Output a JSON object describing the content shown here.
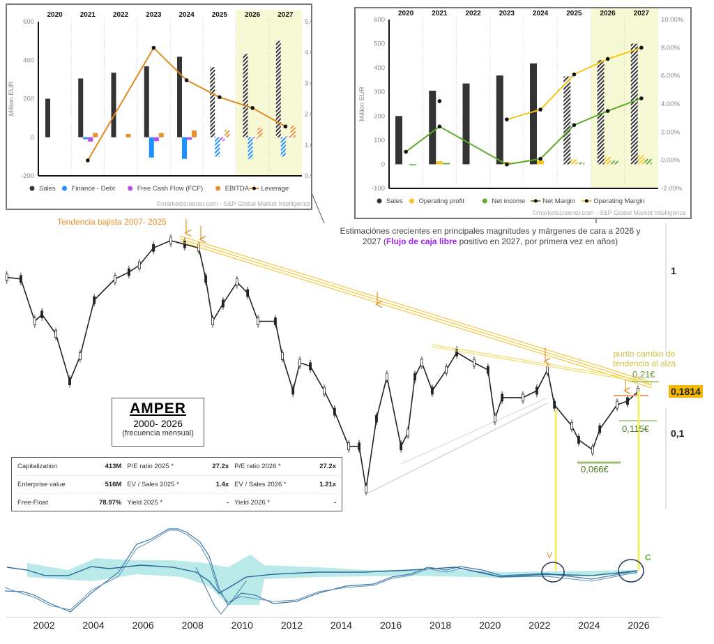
{
  "chart_data": [
    {
      "type": "bar",
      "title": "",
      "categories": [
        "2020",
        "2021",
        "2022",
        "2023",
        "2024",
        "2025",
        "2026",
        "2027"
      ],
      "estimate_categories": [
        "2025",
        "2026",
        "2027"
      ],
      "highlighted_categories": [
        "2026",
        "2027"
      ],
      "ylabel": "Million EUR",
      "ylim": [
        -200,
        600
      ],
      "yticks": [
        -200,
        0,
        200,
        400,
        600
      ],
      "ylabel_right": "Leverage (Debt/Ebitda)",
      "ylim_right": [
        0,
        5
      ],
      "yticks_right": [
        "0.00x",
        "1.00x",
        "2.00x",
        "3.00x",
        "4.00x",
        "5.00x"
      ],
      "series": [
        {
          "name": "Sales",
          "kind": "bar",
          "color": "#333333",
          "values": [
            200,
            305,
            335,
            368,
            418,
            364,
            432,
            500
          ]
        },
        {
          "name": "Finance - Debt",
          "kind": "bar",
          "color": "#1e90ff",
          "values": [
            null,
            -10,
            null,
            -105,
            -112,
            -100,
            -112,
            -100
          ]
        },
        {
          "name": "Free Cash Flow (FCF)",
          "kind": "bar",
          "color": "#b44cf0",
          "values": [
            null,
            -22,
            null,
            -20,
            -13,
            -18,
            -4,
            5
          ]
        },
        {
          "name": "EBITDA",
          "kind": "bar",
          "color": "#e8902a",
          "values": [
            null,
            22,
            17,
            22,
            35,
            38,
            50,
            60
          ]
        },
        {
          "name": "Leverage",
          "kind": "line",
          "axis": "right",
          "color": "#e08a20",
          "values": [
            null,
            0.5,
            null,
            4.15,
            3.1,
            2.55,
            2.2,
            1.6
          ]
        }
      ],
      "watermark": "©marketscreener.com - S&P Global Market Intelligence"
    },
    {
      "type": "bar",
      "title": "",
      "categories": [
        "2020",
        "2021",
        "2022",
        "2023",
        "2024",
        "2025",
        "2026",
        "2027"
      ],
      "estimate_categories": [
        "2025",
        "2026",
        "2027"
      ],
      "highlighted_categories": [
        "2026",
        "2027"
      ],
      "ylabel": "Million EUR",
      "ylim": [
        -100,
        600
      ],
      "yticks": [
        -100,
        0,
        100,
        200,
        300,
        400,
        500,
        600
      ],
      "ylim_right": [
        -2,
        10
      ],
      "yticks_right": [
        "-2.00%",
        "0.00%",
        "2.00%",
        "4.00%",
        "6.00%",
        "8.00%",
        "10.00%"
      ],
      "series": [
        {
          "name": "Sales",
          "kind": "bar",
          "color": "#333333",
          "values": [
            200,
            305,
            335,
            368,
            418,
            364,
            432,
            500
          ]
        },
        {
          "name": "Operating profit",
          "kind": "bar",
          "color": "#f5c518",
          "values": [
            null,
            12,
            null,
            10,
            15,
            20,
            30,
            38
          ]
        },
        {
          "name": "Net income",
          "kind": "bar",
          "color": "#5aab28",
          "values": [
            -2,
            5,
            null,
            null,
            null,
            8,
            15,
            22
          ]
        },
        {
          "name": "Net Margin",
          "kind": "line",
          "axis": "right",
          "color": "#5aab28",
          "values": [
            0.6,
            2.4,
            null,
            -0.3,
            0.1,
            2.5,
            3.5,
            4.4
          ]
        },
        {
          "name": "Operating Margin",
          "kind": "line",
          "axis": "right",
          "color": "#f5c518",
          "values": [
            null,
            4.2,
            null,
            2.9,
            3.6,
            6.1,
            7.2,
            8.0
          ]
        }
      ],
      "watermark": "©marketscreener.com - S&P Global Market Intelligence"
    },
    {
      "type": "line",
      "title": "AMPER",
      "scale": "log",
      "yticks": [
        "1",
        "0,1"
      ],
      "xticks": [
        "2002",
        "2004",
        "2006",
        "2008",
        "2010",
        "2012",
        "2014",
        "2016",
        "2018",
        "2020",
        "2022",
        "2024",
        "2026"
      ],
      "series": [
        {
          "name": "Price (monthly)",
          "points": [
            [
              2000.5,
              0.91
            ],
            [
              2001.07,
              0.89
            ],
            [
              2001.63,
              0.49
            ],
            [
              2001.92,
              0.54
            ],
            [
              2002.48,
              0.41
            ],
            [
              2003.04,
              0.21
            ],
            [
              2003.46,
              0.3
            ],
            [
              2004.03,
              0.66
            ],
            [
              2004.87,
              0.89
            ],
            [
              2005.43,
              0.98
            ],
            [
              2005.85,
              1.08
            ],
            [
              2006.42,
              1.38
            ],
            [
              2007.12,
              1.53
            ],
            [
              2007.68,
              1.45
            ],
            [
              2008.25,
              1.38
            ],
            [
              2008.53,
              0.89
            ],
            [
              2008.81,
              0.49
            ],
            [
              2009.23,
              0.63
            ],
            [
              2009.79,
              0.85
            ],
            [
              2010.22,
              0.73
            ],
            [
              2010.64,
              0.49
            ],
            [
              2011.34,
              0.49
            ],
            [
              2011.62,
              0.3
            ],
            [
              2012.05,
              0.184
            ],
            [
              2012.33,
              0.273
            ],
            [
              2012.75,
              0.26
            ],
            [
              2013.31,
              0.184
            ],
            [
              2013.73,
              0.137
            ],
            [
              2014.3,
              0.084
            ],
            [
              2014.72,
              0.084
            ],
            [
              2015.0,
              0.046
            ],
            [
              2015.42,
              0.124
            ],
            [
              2015.84,
              0.224
            ],
            [
              2016.41,
              0.084
            ],
            [
              2016.69,
              0.102
            ],
            [
              2016.97,
              0.224
            ],
            [
              2017.25,
              0.273
            ],
            [
              2017.67,
              0.184
            ],
            [
              2018.24,
              0.247
            ],
            [
              2018.66,
              0.316
            ],
            [
              2019.36,
              0.273
            ],
            [
              2019.92,
              0.247
            ],
            [
              2020.2,
              0.124
            ],
            [
              2020.49,
              0.167
            ],
            [
              2021.33,
              0.167
            ],
            [
              2021.89,
              0.184
            ],
            [
              2022.32,
              0.247
            ],
            [
              2022.6,
              0.151
            ],
            [
              2023.3,
              0.112
            ],
            [
              2023.58,
              0.092
            ],
            [
              2024.14,
              0.08
            ],
            [
              2024.43,
              0.107
            ],
            [
              2025.13,
              0.151
            ],
            [
              2025.55,
              0.159
            ],
            [
              2025.97,
              0.1814
            ]
          ]
        }
      ],
      "last_price": "0,1814"
    }
  ],
  "top_left_chart": {
    "years": [
      "2020",
      "2021",
      "2022",
      "2023",
      "2024",
      "2025",
      "2026",
      "2027"
    ],
    "yticks": [
      "600",
      "400",
      "200",
      "0",
      "-200"
    ],
    "yticks_right": [
      "5.00x",
      "4.00x",
      "3.00x",
      "2.00x",
      "1.00x",
      "0.00x"
    ],
    "ylabel": "Million EUR",
    "ylabel_right": "Leverage (Debt/Ebitda)",
    "legend": [
      "Sales",
      "Finance - Debt",
      "Free Cash Flow (FCF)",
      "EBITDA",
      "Leverage"
    ],
    "watermark": "©marketscreener.com - S&P Global Market Intelligence"
  },
  "top_right_chart": {
    "years": [
      "2020",
      "2021",
      "2022",
      "2023",
      "2024",
      "2025",
      "2026",
      "2027"
    ],
    "yticks": [
      "600",
      "500",
      "400",
      "300",
      "200",
      "100",
      "0",
      "-100"
    ],
    "yticks_right": [
      "10.00%",
      "8.00%",
      "6.00%",
      "4.00%",
      "2.00%",
      "0.00%",
      "-2.00%"
    ],
    "ylabel": "Million EUR",
    "legend": [
      "Sales",
      "Operating profit",
      "Net income",
      "Net Margin",
      "Operating Margin"
    ],
    "watermark": "©marketscreener.com - S&P Global Market Intelligence"
  },
  "annotations": {
    "trend_label": "Tendencia bajista 2007- 2025",
    "estimates_line1": "Estimaciónes crecientes en principales magnitudes y márgenes de cara a 2026 y",
    "estimates_line2_pre": "2027 (",
    "estimates_highlight": "Flujo de caja libre",
    "estimates_line2_post": " positivo en 2027, por primera vez en años)",
    "trend_change": "punto cambio de tendencia al alza",
    "level_high": "0,21€",
    "level_mid": "0,115€",
    "level_low": "0,066€",
    "price_tick_1": "1",
    "price_tick_01": "0,1",
    "last_price": "0,1814",
    "signal_sell": "V",
    "signal_buy": "C"
  },
  "title_box": {
    "name": "AMPER",
    "period": "2000- 2026",
    "frequency": "(frecuencia mensual)"
  },
  "fundamentals": {
    "rows": [
      [
        "Capitalization",
        "413M",
        "P/E ratio 2025 *",
        "27.2x",
        "P/E ratio 2026 *",
        "27.2x"
      ],
      [
        "Enterprise value",
        "516M",
        "EV / Sales 2025 *",
        "1.4x",
        "EV / Sales 2026 *",
        "1.21x"
      ],
      [
        "Free-Float",
        "78.97%",
        "Yield 2025 *",
        "-",
        "Yield 2026 *",
        "-"
      ]
    ]
  },
  "x_axis_years": [
    "2002",
    "2004",
    "2006",
    "2008",
    "2010",
    "2012",
    "2014",
    "2016",
    "2018",
    "2020",
    "2022",
    "2024",
    "2026"
  ]
}
